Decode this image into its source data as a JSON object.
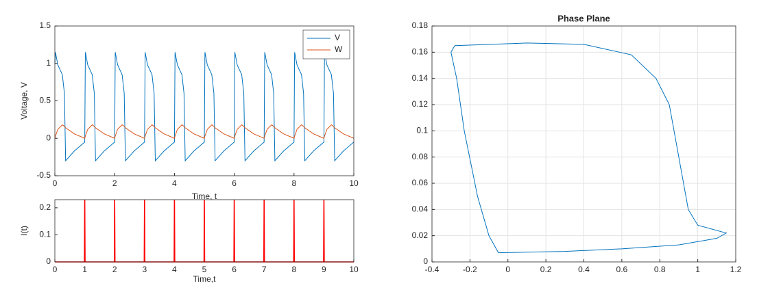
{
  "chart_data": [
    {
      "type": "line",
      "xlabel": "Time, t",
      "ylabel": "Voltage, V",
      "x": [
        0,
        0.02,
        0.1,
        0.25,
        0.32,
        0.36,
        0.65,
        1,
        1.02,
        1.1,
        1.25,
        1.32,
        1.36,
        1.65,
        2,
        2.02,
        2.1,
        2.25,
        2.32,
        2.36,
        2.65,
        3,
        3.02,
        3.1,
        3.25,
        3.32,
        3.36,
        3.65,
        4,
        4.02,
        4.1,
        4.25,
        4.32,
        4.36,
        4.65,
        5,
        5.02,
        5.1,
        5.25,
        5.32,
        5.36,
        5.65,
        6,
        6.02,
        6.1,
        6.25,
        6.32,
        6.36,
        6.65,
        7,
        7.02,
        7.1,
        7.25,
        7.32,
        7.36,
        7.65,
        8,
        8.02,
        8.1,
        8.25,
        8.32,
        8.36,
        8.65,
        9,
        9.02,
        9.1,
        9.25,
        9.32,
        9.36,
        9.65,
        10
      ],
      "series": [
        {
          "name": "V",
          "color": "#0072bd",
          "values": [
            1.0,
            1.15,
            0.98,
            0.85,
            0.6,
            -0.3,
            -0.17,
            -0.05,
            1.15,
            0.98,
            0.85,
            0.6,
            -0.3,
            -0.17,
            -0.05,
            1.15,
            0.98,
            0.85,
            0.6,
            -0.3,
            -0.17,
            -0.05,
            1.15,
            0.98,
            0.85,
            0.6,
            -0.3,
            -0.17,
            -0.05,
            1.15,
            0.98,
            0.85,
            0.6,
            -0.3,
            -0.17,
            -0.05,
            1.15,
            0.98,
            0.85,
            0.6,
            -0.3,
            -0.17,
            -0.05,
            1.15,
            0.98,
            0.85,
            0.6,
            -0.3,
            -0.17,
            -0.05,
            1.15,
            0.98,
            0.85,
            0.6,
            -0.3,
            -0.17,
            -0.05,
            1.15,
            0.98,
            0.85,
            0.6,
            -0.3,
            -0.17,
            -0.05,
            1.15,
            0.98,
            0.85,
            0.6,
            -0.3,
            -0.17,
            -0.05
          ]
        },
        {
          "name": "W",
          "color": "#d95319",
          "values": [
            0.0,
            0.03,
            0.12,
            0.18,
            0.16,
            0.14,
            0.06,
            0.0,
            0.03,
            0.12,
            0.18,
            0.16,
            0.14,
            0.06,
            0.0,
            0.03,
            0.12,
            0.18,
            0.16,
            0.14,
            0.06,
            0.0,
            0.03,
            0.12,
            0.18,
            0.16,
            0.14,
            0.06,
            0.0,
            0.03,
            0.12,
            0.18,
            0.16,
            0.14,
            0.06,
            0.0,
            0.03,
            0.12,
            0.18,
            0.16,
            0.14,
            0.06,
            0.0,
            0.03,
            0.12,
            0.18,
            0.16,
            0.14,
            0.06,
            0.0,
            0.03,
            0.12,
            0.18,
            0.16,
            0.14,
            0.06,
            0.0,
            0.03,
            0.12,
            0.18,
            0.16,
            0.14,
            0.06,
            0.0,
            0.03,
            0.12,
            0.18,
            0.16,
            0.14,
            0.06,
            0.0
          ]
        }
      ],
      "xlim": [
        0,
        10
      ],
      "xticks": [
        0,
        2,
        4,
        6,
        8,
        10
      ],
      "ylim": [
        -0.5,
        1.5
      ],
      "yticks": [
        -0.5,
        0,
        0.5,
        1,
        1.5
      ],
      "grid": false,
      "legend": "northeast"
    },
    {
      "type": "line",
      "xlabel": "Time,t",
      "ylabel": "I(t)",
      "x": [
        0,
        0.99,
        1,
        1.01,
        1.99,
        2,
        2.01,
        2.99,
        3,
        3.01,
        3.99,
        4,
        4.01,
        4.99,
        5,
        5.01,
        5.99,
        6,
        6.01,
        6.99,
        7,
        7.01,
        7.99,
        8,
        8.01,
        8.99,
        9,
        9.01,
        10
      ],
      "series": [
        {
          "color": "#ff0000",
          "values": [
            0,
            0,
            0.23,
            0,
            0,
            0.23,
            0,
            0,
            0.23,
            0,
            0,
            0.23,
            0,
            0,
            0.23,
            0,
            0,
            0.23,
            0,
            0,
            0.23,
            0,
            0,
            0.23,
            0,
            0,
            0.23,
            0,
            0
          ]
        }
      ],
      "xlim": [
        0,
        10
      ],
      "xticks": [
        0,
        1,
        2,
        3,
        4,
        5,
        6,
        7,
        8,
        9,
        10
      ],
      "ylim": [
        0,
        0.23
      ],
      "yticks": [
        0,
        0.1,
        0.2
      ],
      "grid": false
    },
    {
      "type": "line",
      "title": "Phase Plane",
      "x": [
        -0.05,
        0.3,
        0.6,
        0.9,
        1.1,
        1.15,
        1.0,
        0.95,
        0.9,
        0.85,
        0.78,
        0.65,
        0.4,
        0.1,
        -0.28,
        -0.3,
        -0.27,
        -0.23,
        -0.16,
        -0.1,
        -0.05
      ],
      "series": [
        {
          "color": "#0072bd",
          "values": [
            0.007,
            0.008,
            0.01,
            0.013,
            0.018,
            0.022,
            0.028,
            0.04,
            0.08,
            0.12,
            0.14,
            0.158,
            0.166,
            0.167,
            0.165,
            0.16,
            0.14,
            0.1,
            0.05,
            0.02,
            0.007
          ]
        }
      ],
      "xlim": [
        -0.4,
        1.2
      ],
      "xticks": [
        -0.4,
        -0.2,
        0,
        0.2,
        0.4,
        0.6,
        0.8,
        1,
        1.2
      ],
      "ylim": [
        0,
        0.18
      ],
      "yticks": [
        0,
        0.02,
        0.04,
        0.06,
        0.08,
        0.1,
        0.12,
        0.14,
        0.16,
        0.18
      ],
      "grid": true
    }
  ]
}
